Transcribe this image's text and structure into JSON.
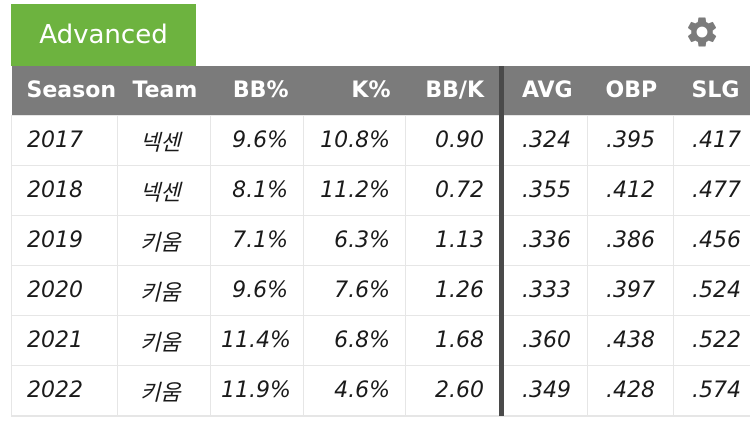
{
  "tabs": {
    "advanced_label": "Advanced"
  },
  "icons": {
    "settings": "gear-icon"
  },
  "colors": {
    "tab_active": "#6db33f",
    "header_bg": "#7b7b7b",
    "divider": "#4a4a4a"
  },
  "table": {
    "headers": [
      "Season",
      "Team",
      "BB%",
      "K%",
      "BB/K",
      "AVG",
      "OBP",
      "SLG"
    ],
    "rows": [
      [
        "2017",
        "넥센",
        "9.6%",
        "10.8%",
        "0.90",
        ".324",
        ".395",
        ".417"
      ],
      [
        "2018",
        "넥센",
        "8.1%",
        "11.2%",
        "0.72",
        ".355",
        ".412",
        ".477"
      ],
      [
        "2019",
        "키움",
        "7.1%",
        "6.3%",
        "1.13",
        ".336",
        ".386",
        ".456"
      ],
      [
        "2020",
        "키움",
        "9.6%",
        "7.6%",
        "1.26",
        ".333",
        ".397",
        ".524"
      ],
      [
        "2021",
        "키움",
        "11.4%",
        "6.8%",
        "1.68",
        ".360",
        ".438",
        ".522"
      ],
      [
        "2022",
        "키움",
        "11.9%",
        "4.6%",
        "2.60",
        ".349",
        ".428",
        ".574"
      ]
    ]
  }
}
